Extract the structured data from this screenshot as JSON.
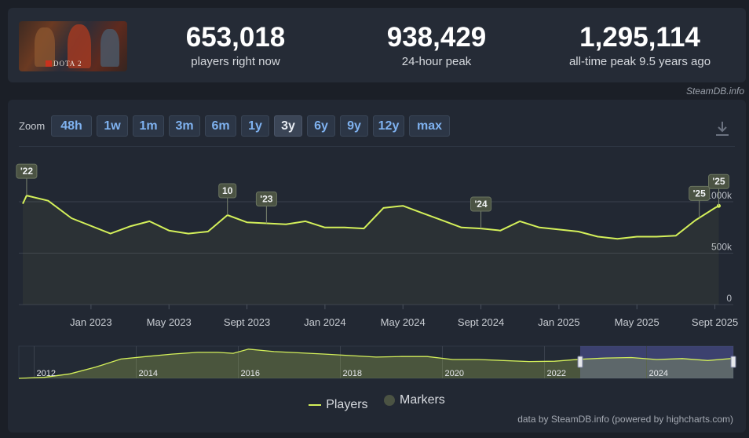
{
  "game": {
    "logo_text": "DOTA 2"
  },
  "stats": [
    {
      "value": "653,018",
      "label": "players right now"
    },
    {
      "value": "938,429",
      "label": "24-hour peak"
    },
    {
      "value": "1,295,114",
      "label": "all-time peak 9.5 years ago"
    }
  ],
  "credit_top": "SteamDB.info",
  "zoom": {
    "label": "Zoom",
    "options": [
      "48h",
      "1w",
      "1m",
      "3m",
      "6m",
      "1y",
      "3y",
      "6y",
      "9y",
      "12y",
      "max"
    ],
    "selected": "3y"
  },
  "icons": {
    "download": "download-icon"
  },
  "colors": {
    "series": "#d4f05a",
    "marker": "#4b5343",
    "accent": "#7fb2f0"
  },
  "chart_data": {
    "type": "line",
    "y_ticks": [
      0,
      500000,
      1000000
    ],
    "y_tick_labels": [
      "0",
      "500k",
      "1000k"
    ],
    "ylim": [
      0,
      1000000
    ],
    "x_tick_labels": [
      "Jan 2023",
      "May 2023",
      "Sept 2023",
      "Jan 2024",
      "May 2024",
      "Sept 2024",
      "Jan 2025",
      "May 2025",
      "Sept 2025"
    ],
    "x_tick_months": [
      3.5,
      7.5,
      11.5,
      15.5,
      19.5,
      23.5,
      27.5,
      31.5,
      35.5
    ],
    "grid": true,
    "series": [
      {
        "name": "Players",
        "x": [
          0,
          0.2,
          1.3,
          2.5,
          4.5,
          5.5,
          6.5,
          7.5,
          8.5,
          9.5,
          10.5,
          11.5,
          12.5,
          13.5,
          14.5,
          15.5,
          16.5,
          17.5,
          18.5,
          19.5,
          20.5,
          21.5,
          22.5,
          23.5,
          24.5,
          25.5,
          26.5,
          27.5,
          28.5,
          29.5,
          30.5,
          31.5,
          32.5,
          33.5,
          34.5,
          35.5,
          35.7
        ],
        "y": [
          980000,
          1060000,
          1010000,
          840000,
          690000,
          760000,
          810000,
          720000,
          690000,
          710000,
          870000,
          800000,
          790000,
          780000,
          810000,
          750000,
          750000,
          740000,
          940000,
          960000,
          890000,
          820000,
          750000,
          740000,
          720000,
          810000,
          750000,
          730000,
          710000,
          660000,
          640000,
          660000,
          660000,
          670000,
          820000,
          940000,
          960000
        ]
      }
    ],
    "markers": [
      {
        "label": "'22",
        "x": 0.2
      },
      {
        "label": "10",
        "x": 10.5
      },
      {
        "label": "'23",
        "x": 12.5
      },
      {
        "label": "'24",
        "x": 23.5
      },
      {
        "label": "'25",
        "x": 34.7
      },
      {
        "label": "'25",
        "x": 35.7
      }
    ],
    "navigator": {
      "labels": [
        "2012",
        "2014",
        "2016",
        "2018",
        "2020",
        "2022",
        "2024"
      ],
      "label_years": [
        2012,
        2014,
        2016,
        2018,
        2020,
        2022,
        2024
      ],
      "year_range": [
        2011.7,
        2025.7
      ],
      "selected_range": [
        2022.7,
        2025.7
      ],
      "x": [
        2011.7,
        2012.2,
        2012.7,
        2013.2,
        2013.7,
        2014.2,
        2014.7,
        2015.2,
        2015.6,
        2015.9,
        2016.2,
        2016.7,
        2017.2,
        2017.7,
        2018.2,
        2018.7,
        2019.2,
        2019.7,
        2020.2,
        2020.7,
        2021.2,
        2021.7,
        2022.2,
        2022.7,
        2023.2,
        2023.7,
        2024.2,
        2024.7,
        2025.2,
        2025.7
      ],
      "y": [
        0,
        40000,
        180000,
        450000,
        780000,
        880000,
        980000,
        1050000,
        1050000,
        1010000,
        1180000,
        1080000,
        1030000,
        980000,
        920000,
        860000,
        880000,
        880000,
        760000,
        760000,
        720000,
        680000,
        690000,
        770000,
        820000,
        840000,
        760000,
        800000,
        720000,
        810000
      ],
      "ylim": [
        0,
        1300000
      ]
    },
    "legend": [
      {
        "name": "Players",
        "kind": "line"
      },
      {
        "name": "Markers",
        "kind": "marker"
      }
    ]
  },
  "credit_bottom": "data by SteamDB.info (powered by highcharts.com)"
}
